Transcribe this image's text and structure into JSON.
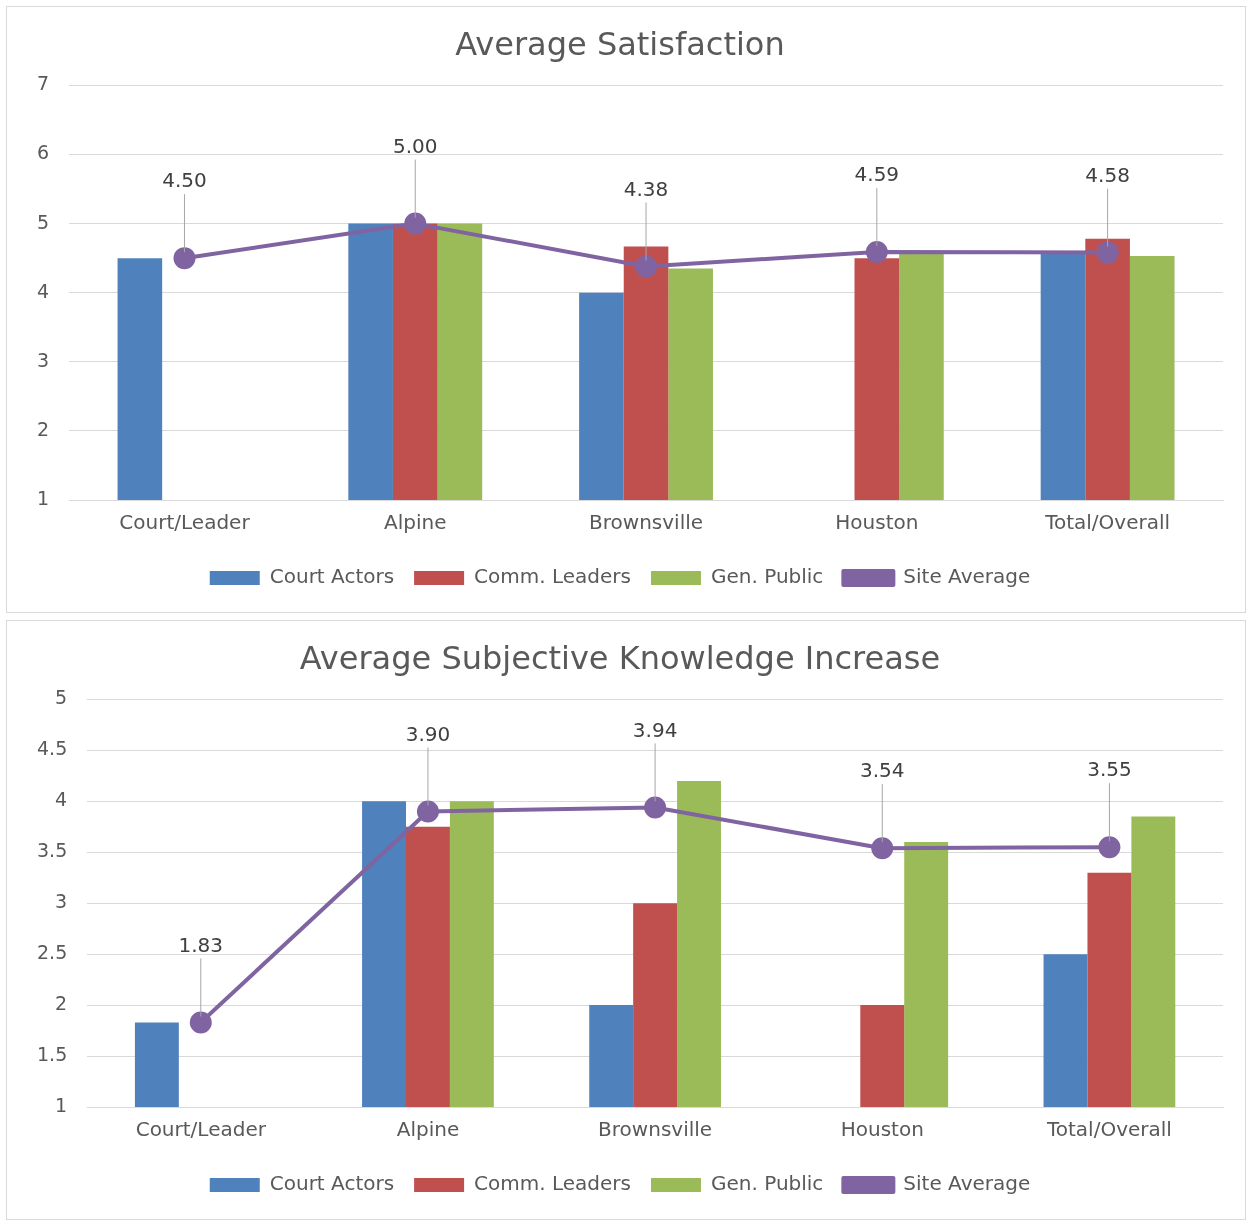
{
  "chart_data": [
    {
      "type": "bar",
      "title": "Average Satisfaction",
      "categories": [
        "Court/Leader",
        "Alpine",
        "Brownsville",
        "Houston",
        "Total/Overall"
      ],
      "series": [
        {
          "name": "Court Actors",
          "color": "#4f81bd",
          "values": [
            4.5,
            5,
            4,
            null,
            4.6
          ]
        },
        {
          "name": "Comm. Leaders",
          "color": "#c0504d",
          "values": [
            null,
            5,
            4.67,
            4.5,
            4.78
          ]
        },
        {
          "name": "Gen. Public",
          "color": "#9bbb59",
          "values": [
            null,
            5,
            4.35,
            4.6,
            4.53
          ]
        },
        {
          "name": "Site Average",
          "color": "#8064a2",
          "type": "line",
          "marker": "circle",
          "values": [
            4.5,
            5,
            4.38,
            4.59,
            4.58
          ],
          "value_labels": [
            "4.50",
            "5.00",
            "4.38",
            "4.59",
            "4.58"
          ]
        }
      ],
      "ylim": [
        1,
        7
      ],
      "yticks": [
        1,
        2,
        3,
        4,
        5,
        6,
        7
      ],
      "grid": "y",
      "legend": "bottom"
    },
    {
      "type": "bar",
      "title": "Average Subjective Knowledge Increase",
      "categories": [
        "Court/Leader",
        "Alpine",
        "Brownsville",
        "Houston",
        "Total/Overall"
      ],
      "series": [
        {
          "name": "Court Actors",
          "color": "#4f81bd",
          "values": [
            1.83,
            4,
            2,
            null,
            2.5
          ]
        },
        {
          "name": "Comm. Leaders",
          "color": "#c0504d",
          "values": [
            null,
            3.75,
            3,
            2,
            3.3
          ]
        },
        {
          "name": "Gen. Public",
          "color": "#9bbb59",
          "values": [
            null,
            4,
            4.2,
            3.6,
            3.85
          ]
        },
        {
          "name": "Site Average",
          "color": "#8064a2",
          "type": "line",
          "marker": "circle",
          "values": [
            1.83,
            3.9,
            3.94,
            3.54,
            3.55
          ],
          "value_labels": [
            "1.83",
            "3.90",
            "3.94",
            "3.54",
            "3.55"
          ]
        }
      ],
      "ylim": [
        1,
        5
      ],
      "yticks": [
        1,
        1.5,
        2,
        2.5,
        3,
        3.5,
        4,
        4.5,
        5
      ],
      "grid": "y",
      "legend": "bottom"
    }
  ]
}
